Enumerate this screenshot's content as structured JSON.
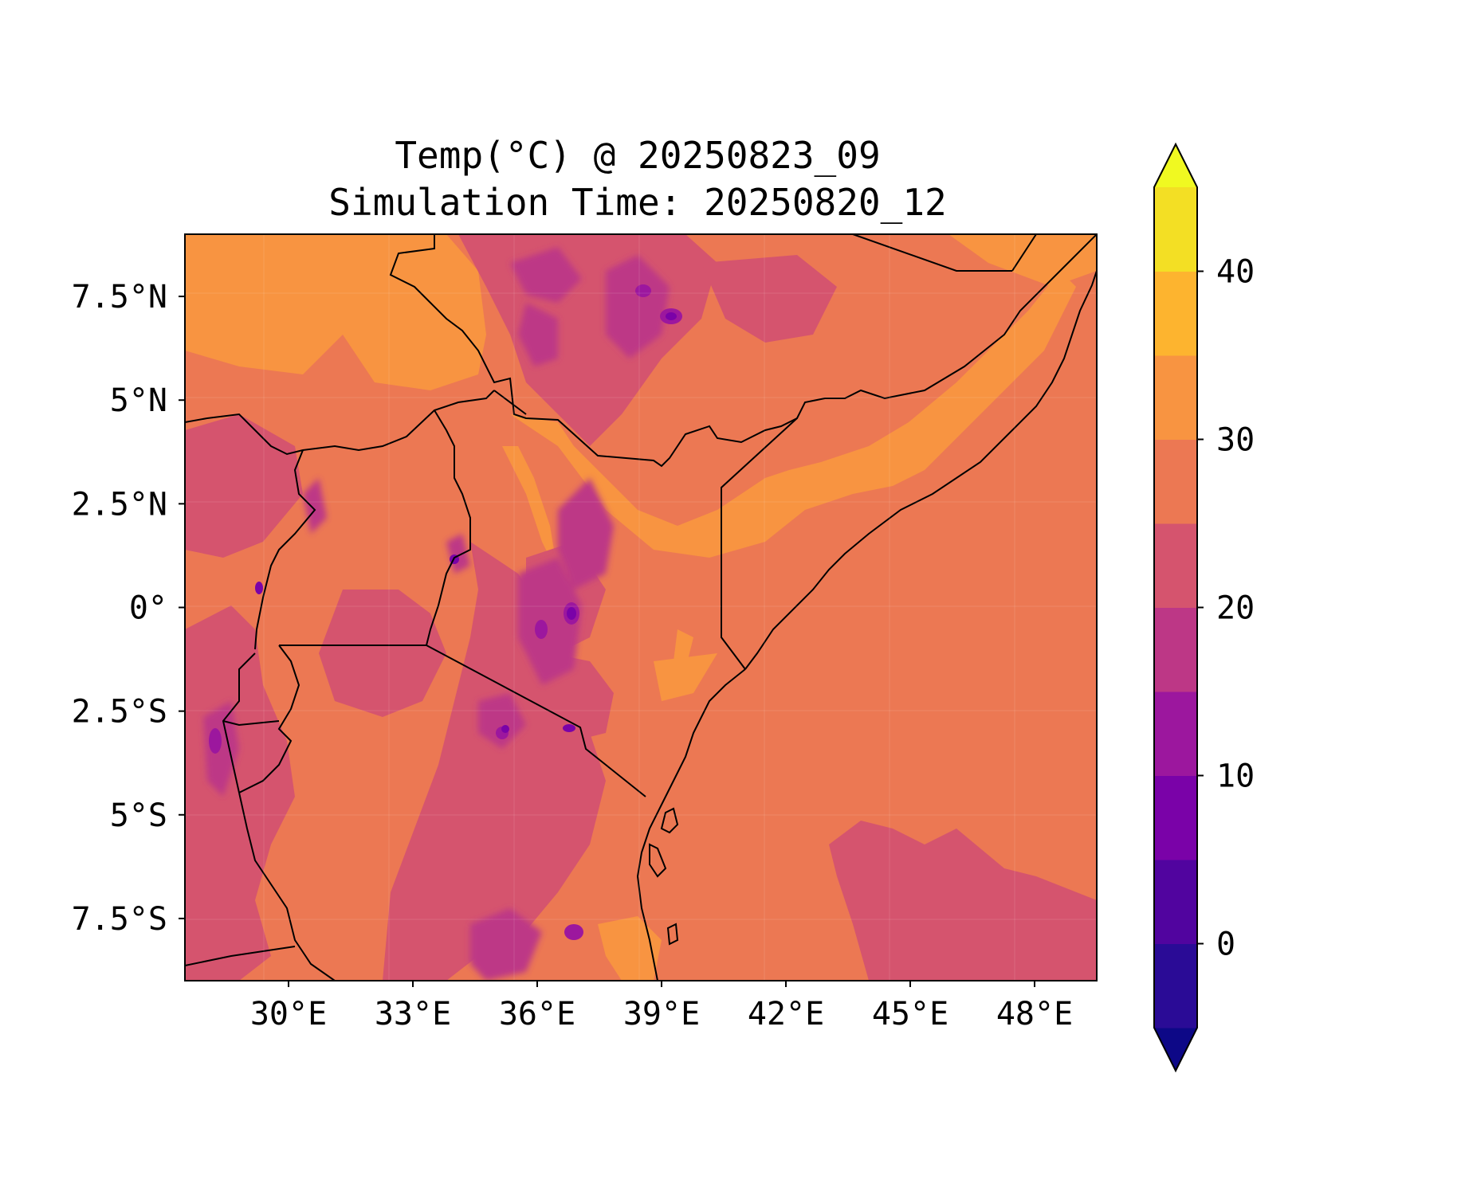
{
  "title_line1": "Temp(°C) @ 20250823_09",
  "title_line2": "Simulation Time: 20250820_12",
  "map": {
    "lon_range": [
      27.5,
      49.5
    ],
    "lat_range": [
      -9,
      9
    ],
    "x_ticks": [
      30,
      33,
      36,
      39,
      42,
      45,
      48
    ],
    "x_tick_labels": [
      "30°E",
      "33°E",
      "36°E",
      "39°E",
      "42°E",
      "45°E",
      "48°E"
    ],
    "y_ticks": [
      7.5,
      5,
      2.5,
      0,
      -2.5,
      -5,
      -7.5
    ],
    "y_tick_labels": [
      "7.5°N",
      "5°N",
      "2.5°N",
      "0°",
      "2.5°S",
      "5°S",
      "7.5°S"
    ],
    "border_color": "#000000"
  },
  "colorbar": {
    "levels": [
      -5,
      0,
      5,
      10,
      15,
      20,
      25,
      30,
      35,
      40,
      45
    ],
    "colors": [
      "#2a0b96",
      "#51049f",
      "#7a02a8",
      "#9c179e",
      "#bd3786",
      "#d5546e",
      "#ec7853",
      "#f89441",
      "#fdb42f",
      "#f3df24"
    ],
    "under_color": "#0d0887",
    "over_color": "#f0f921",
    "ticks": [
      0,
      10,
      20,
      30,
      40
    ],
    "tick_labels": [
      "0",
      "10",
      "20",
      "30",
      "40"
    ],
    "extend": "both"
  }
}
